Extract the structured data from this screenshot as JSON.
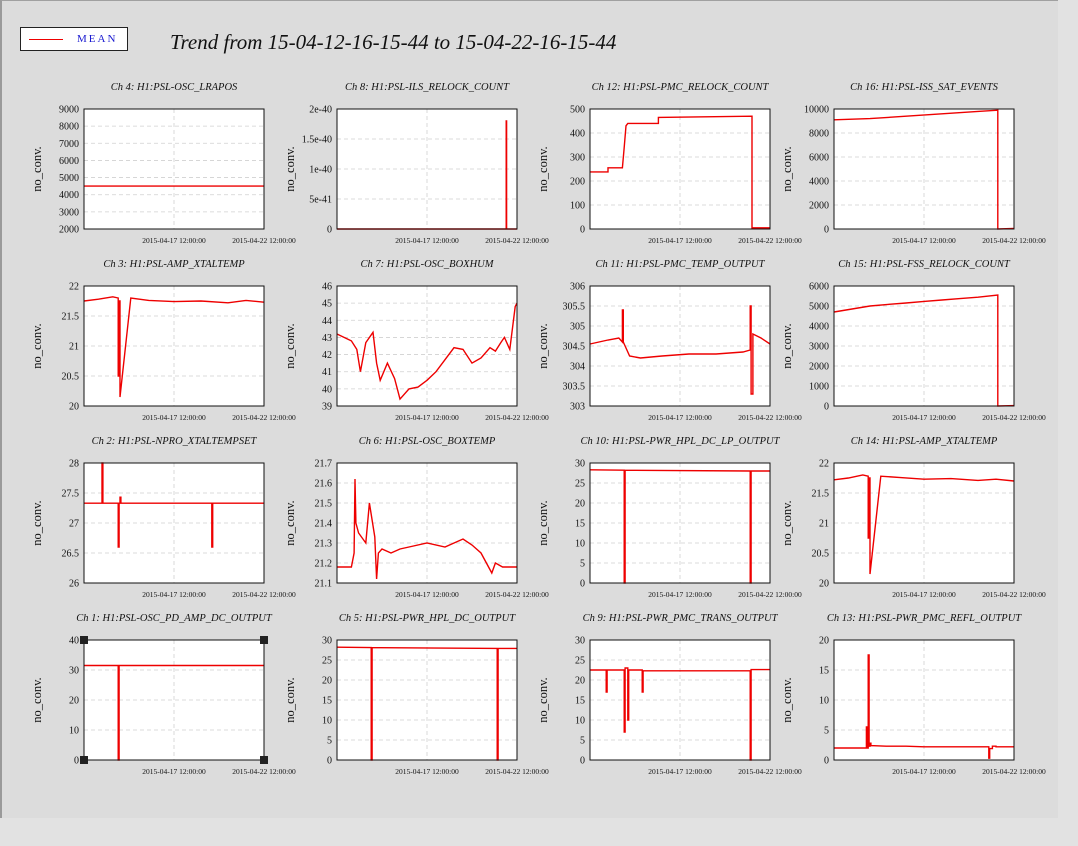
{
  "title": "Trend from 15-04-12-16-15-44 to 15-04-22-16-15-44",
  "legend": {
    "label": "MEAN",
    "color": "#ee0000"
  },
  "x_tick_labels": [
    "2015-04-17 12:00:00",
    "2015-04-22 12:00:00"
  ],
  "chart_data": [
    {
      "type": "line",
      "title": "Ch 4: H1:PSL-OSC_LRAPOS",
      "ylabel": "no_conv.",
      "ylim": [
        2000,
        9000
      ],
      "yticks": [
        2000,
        3000,
        4000,
        5000,
        6000,
        7000,
        8000,
        9000
      ],
      "ytick_labels": [
        "2000",
        "3000",
        "4000",
        "5000",
        "6000",
        "7000",
        "8000",
        "9000"
      ],
      "xlim": [
        0,
        10
      ],
      "xticks": [
        5,
        10
      ],
      "series": [
        {
          "x": [
            0,
            10
          ],
          "y": [
            4500,
            4500
          ]
        }
      ]
    },
    {
      "type": "line",
      "title": "Ch 8: H1:PSL-ILS_RELOCK_COUNT",
      "ylabel": "no_conv.",
      "ylim": [
        0,
        2e-40
      ],
      "yticks": [
        0,
        5e-41,
        1e-40,
        1.5e-40,
        2e-40
      ],
      "ytick_labels": [
        "0",
        "5e-41",
        "1e-40",
        "1.5e-40",
        "2e-40"
      ],
      "xlim": [
        0,
        10
      ],
      "xticks": [
        5,
        10
      ],
      "series": [
        {
          "x": [
            0,
            9.4,
            9.4,
            9.42,
            9.42,
            10
          ],
          "y": [
            0,
            0,
            1.8e-40,
            1.8e-40,
            0,
            0
          ]
        }
      ]
    },
    {
      "type": "line",
      "title": "Ch 12: H1:PSL-PMC_RELOCK_COUNT",
      "ylabel": "no_conv.",
      "ylim": [
        0,
        500
      ],
      "yticks": [
        0,
        100,
        200,
        300,
        400,
        500
      ],
      "ytick_labels": [
        "0",
        "100",
        "200",
        "300",
        "400",
        "500"
      ],
      "xlim": [
        0,
        10
      ],
      "xticks": [
        5,
        10
      ],
      "series": [
        {
          "x": [
            0,
            1,
            1,
            1.8,
            1.9,
            2,
            2.1,
            3.8,
            3.8,
            9.0,
            9.0,
            10
          ],
          "y": [
            238,
            238,
            255,
            255,
            340,
            430,
            440,
            440,
            465,
            470,
            5,
            5
          ]
        }
      ]
    },
    {
      "type": "line",
      "title": "Ch 16: H1:PSL-ISS_SAT_EVENTS",
      "ylabel": "no_conv.",
      "ylim": [
        0,
        10000
      ],
      "yticks": [
        0,
        2000,
        4000,
        6000,
        8000,
        10000
      ],
      "ytick_labels": [
        "0",
        "2000",
        "4000",
        "6000",
        "8000",
        "10000"
      ],
      "xlim": [
        0,
        10
      ],
      "xticks": [
        5,
        10
      ],
      "series": [
        {
          "x": [
            0,
            2,
            4,
            6,
            8,
            9.1,
            9.1,
            10
          ],
          "y": [
            9100,
            9200,
            9400,
            9600,
            9800,
            9900,
            0,
            50
          ]
        }
      ]
    },
    {
      "type": "line",
      "title": "Ch 3: H1:PSL-AMP_XTALTEMP",
      "ylabel": "no_conv.",
      "ylim": [
        20,
        22
      ],
      "yticks": [
        20,
        20.5,
        21,
        21.5,
        22
      ],
      "ytick_labels": [
        "20",
        "20.5",
        "21",
        "21.5",
        "22"
      ],
      "xlim": [
        0,
        10
      ],
      "xticks": [
        5,
        10
      ],
      "series": [
        {
          "x": [
            0,
            0.8,
            1.6,
            1.9,
            1.9,
            1.95,
            1.95,
            2.0,
            2.0,
            2.6,
            3.6,
            5,
            6.5,
            8,
            9,
            10
          ],
          "y": [
            21.75,
            21.78,
            21.82,
            21.8,
            20.5,
            20.5,
            21.75,
            21.75,
            20.15,
            21.8,
            21.76,
            21.74,
            21.75,
            21.72,
            21.76,
            21.73
          ]
        }
      ]
    },
    {
      "type": "line",
      "title": "Ch 7: H1:PSL-OSC_BOXHUM",
      "ylabel": "no_conv.",
      "ylim": [
        39,
        46
      ],
      "yticks": [
        39,
        40,
        41,
        42,
        43,
        44,
        45,
        46
      ],
      "ytick_labels": [
        "39",
        "40",
        "41",
        "42",
        "43",
        "44",
        "45",
        "46"
      ],
      "xlim": [
        0,
        10
      ],
      "xticks": [
        5,
        10
      ],
      "series": [
        {
          "x": [
            0,
            0.8,
            1.1,
            1.3,
            1.6,
            2.0,
            2.2,
            2.4,
            2.8,
            3.2,
            3.5,
            4,
            4.5,
            5,
            5.5,
            6,
            6.5,
            7,
            7.5,
            8,
            8.5,
            8.8,
            9.1,
            9.3,
            9.6,
            9.9,
            10
          ],
          "y": [
            43.2,
            42.8,
            42.3,
            41,
            42.7,
            43.3,
            41.5,
            40.5,
            41.5,
            40.6,
            39.4,
            40,
            40.1,
            40.5,
            41,
            41.7,
            42.4,
            42.3,
            41.5,
            41.8,
            42.4,
            42.2,
            42.7,
            43,
            42.3,
            44.8,
            45
          ]
        }
      ]
    },
    {
      "type": "line",
      "title": "Ch 11: H1:PSL-PMC_TEMP_OUTPUT",
      "ylabel": "no_conv.",
      "ylim": [
        303,
        306
      ],
      "yticks": [
        303,
        303.5,
        304,
        304.5,
        305,
        305.5,
        306
      ],
      "ytick_labels": [
        "303",
        "303.5",
        "304",
        "304.5",
        "305",
        "305.5",
        "306"
      ],
      "xlim": [
        0,
        10
      ],
      "xticks": [
        5,
        10
      ],
      "series": [
        {
          "x": [
            0,
            1,
            1.6,
            1.8,
            1.8,
            1.85,
            1.85,
            2.2,
            2.8,
            4,
            5.5,
            7,
            8.5,
            8.9,
            8.9,
            8.95,
            8.95,
            9.05,
            9.05,
            9.5,
            10
          ],
          "y": [
            304.55,
            304.65,
            304.7,
            304.6,
            305.4,
            305.4,
            304.6,
            304.25,
            304.2,
            304.25,
            304.3,
            304.3,
            304.35,
            304.4,
            305.5,
            305.5,
            303.3,
            303.3,
            304.8,
            304.7,
            304.55
          ]
        }
      ]
    },
    {
      "type": "line",
      "title": "Ch 15: H1:PSL-FSS_RELOCK_COUNT",
      "ylabel": "no_conv.",
      "ylim": [
        0,
        6000
      ],
      "yticks": [
        0,
        1000,
        2000,
        3000,
        4000,
        5000,
        6000
      ],
      "ytick_labels": [
        "0",
        "1000",
        "2000",
        "3000",
        "4000",
        "5000",
        "6000"
      ],
      "xlim": [
        0,
        10
      ],
      "xticks": [
        5,
        10
      ],
      "series": [
        {
          "x": [
            0,
            1,
            2,
            3,
            4,
            5,
            6,
            7,
            8,
            9.1,
            9.1,
            10
          ],
          "y": [
            4700,
            4850,
            5000,
            5080,
            5150,
            5230,
            5300,
            5370,
            5440,
            5550,
            0,
            20
          ]
        }
      ]
    },
    {
      "type": "line",
      "title": "Ch 2: H1:PSL-NPRO_XTALTEMPSET",
      "ylabel": "no_conv.",
      "ylim": [
        26,
        28
      ],
      "yticks": [
        26,
        26.5,
        27,
        27.5,
        28
      ],
      "ytick_labels": [
        "26",
        "26.5",
        "27",
        "27.5",
        "28"
      ],
      "xlim": [
        0,
        10
      ],
      "xticks": [
        5,
        10
      ],
      "series": [
        {
          "x": [
            0,
            1,
            1,
            1.05,
            1.05,
            1.9,
            1.9,
            1.95,
            1.95,
            2.0,
            2.0,
            2.05,
            2.05,
            7.1,
            7.1,
            7.15,
            7.15,
            10
          ],
          "y": [
            27.33,
            27.33,
            28,
            28,
            27.33,
            27.33,
            26.6,
            26.6,
            27.33,
            27.33,
            27.43,
            27.43,
            27.33,
            27.33,
            26.6,
            26.6,
            27.33,
            27.33
          ]
        }
      ]
    },
    {
      "type": "line",
      "title": "Ch 6: H1:PSL-OSC_BOXTEMP",
      "ylabel": "no_conv.",
      "ylim": [
        21.1,
        21.7
      ],
      "yticks": [
        21.1,
        21.2,
        21.3,
        21.4,
        21.5,
        21.6,
        21.7
      ],
      "ytick_labels": [
        "21.1",
        "21.2",
        "21.3",
        "21.4",
        "21.5",
        "21.6",
        "21.7"
      ],
      "xlim": [
        0,
        10
      ],
      "xticks": [
        5,
        10
      ],
      "series": [
        {
          "x": [
            0,
            0.8,
            0.95,
            1.0,
            1.05,
            1.2,
            1.6,
            1.8,
            2.1,
            2.2,
            2.3,
            2.5,
            3,
            3.5,
            4,
            5,
            6,
            7,
            7.5,
            8,
            8.3,
            8.6,
            8.8,
            9.2,
            10
          ],
          "y": [
            21.18,
            21.18,
            21.25,
            21.62,
            21.4,
            21.35,
            21.3,
            21.5,
            21.33,
            21.12,
            21.25,
            21.27,
            21.25,
            21.27,
            21.28,
            21.3,
            21.28,
            21.32,
            21.29,
            21.25,
            21.2,
            21.15,
            21.2,
            21.18,
            21.18
          ]
        }
      ]
    },
    {
      "type": "line",
      "title": "Ch 10: H1:PSL-PWR_HPL_DC_LP_OUTPUT",
      "ylabel": "no_conv.",
      "ylim": [
        0,
        30
      ],
      "yticks": [
        0,
        5,
        10,
        15,
        20,
        25,
        30
      ],
      "ytick_labels": [
        "0",
        "5",
        "10",
        "15",
        "20",
        "25",
        "30"
      ],
      "xlim": [
        0,
        10
      ],
      "xticks": [
        5,
        10
      ],
      "series": [
        {
          "x": [
            0,
            1.9,
            1.9,
            1.95,
            1.95,
            8.9,
            8.9,
            8.95,
            8.95,
            10
          ],
          "y": [
            28.3,
            28.2,
            0,
            0,
            28.2,
            28,
            0,
            0,
            28,
            28
          ]
        }
      ]
    },
    {
      "type": "line",
      "title": "Ch 14: H1:PSL-AMP_XTALTEMP",
      "ylabel": "no_conv.",
      "ylim": [
        20,
        22
      ],
      "yticks": [
        20,
        20.5,
        21,
        21.5,
        22
      ],
      "ytick_labels": [
        "20",
        "20.5",
        "21",
        "21.5",
        "22"
      ],
      "xlim": [
        0,
        10
      ],
      "xticks": [
        5,
        10
      ],
      "series": [
        {
          "x": [
            0,
            0.8,
            1.6,
            1.9,
            1.9,
            1.95,
            1.95,
            2.0,
            2.0,
            2.6,
            3.6,
            5,
            6.5,
            8,
            9,
            10
          ],
          "y": [
            21.72,
            21.75,
            21.8,
            21.78,
            20.75,
            20.75,
            21.75,
            21.75,
            20.15,
            21.78,
            21.76,
            21.73,
            21.74,
            21.71,
            21.73,
            21.7
          ]
        }
      ]
    },
    {
      "type": "line",
      "title": "Ch 1: H1:PSL-OSC_PD_AMP_DC_OUTPUT",
      "ylabel": "no_conv.",
      "ylim": [
        0,
        40
      ],
      "yticks": [
        0,
        10,
        20,
        30,
        40
      ],
      "ytick_labels": [
        "0",
        "10",
        "20",
        "30",
        "40"
      ],
      "xlim": [
        0,
        10
      ],
      "xticks": [
        5,
        10
      ],
      "series": [
        {
          "x": [
            0,
            1.9,
            1.9,
            1.95,
            1.95,
            10
          ],
          "y": [
            31.5,
            31.5,
            0,
            0,
            31.5,
            31.5
          ]
        }
      ]
    },
    {
      "type": "line",
      "title": "Ch 5: H1:PSL-PWR_HPL_DC_OUTPUT",
      "ylabel": "no_conv.",
      "ylim": [
        0,
        30
      ],
      "yticks": [
        0,
        5,
        10,
        15,
        20,
        25,
        30
      ],
      "ytick_labels": [
        "0",
        "5",
        "10",
        "15",
        "20",
        "25",
        "30"
      ],
      "xlim": [
        0,
        10
      ],
      "xticks": [
        5,
        10
      ],
      "series": [
        {
          "x": [
            0,
            1.9,
            1.9,
            1.95,
            1.95,
            8.9,
            8.9,
            8.95,
            8.95,
            10
          ],
          "y": [
            28.2,
            28.1,
            0,
            0,
            28.1,
            27.9,
            0,
            0,
            27.9,
            27.9
          ]
        }
      ]
    },
    {
      "type": "line",
      "title": "Ch 9: H1:PSL-PWR_PMC_TRANS_OUTPUT",
      "ylabel": "no_conv.",
      "ylim": [
        0,
        30
      ],
      "yticks": [
        0,
        5,
        10,
        15,
        20,
        25,
        30
      ],
      "ytick_labels": [
        "0",
        "5",
        "10",
        "15",
        "20",
        "25",
        "30"
      ],
      "xlim": [
        0,
        10
      ],
      "xticks": [
        5,
        10
      ],
      "series": [
        {
          "x": [
            0,
            0.9,
            0.9,
            0.95,
            0.95,
            1.9,
            1.9,
            1.95,
            1.95,
            2.1,
            2.1,
            2.15,
            2.15,
            2.9,
            2.9,
            2.95,
            2.95,
            8.9,
            8.9,
            8.95,
            8.95,
            10
          ],
          "y": [
            22.5,
            22.5,
            17,
            17,
            22.5,
            22.5,
            7,
            7,
            23,
            23,
            10,
            10,
            22.5,
            22.5,
            17,
            17,
            22.3,
            22.3,
            0,
            0,
            22.6,
            22.6
          ]
        }
      ]
    },
    {
      "type": "line",
      "title": "Ch 13: H1:PSL-PWR_PMC_REFL_OUTPUT",
      "ylabel": "no_conv.",
      "ylim": [
        0,
        20
      ],
      "yticks": [
        0,
        5,
        10,
        15,
        20
      ],
      "ytick_labels": [
        "0",
        "5",
        "10",
        "15",
        "20"
      ],
      "xlim": [
        0,
        10
      ],
      "xticks": [
        5,
        10
      ],
      "series": [
        {
          "x": [
            0,
            1.8,
            1.8,
            1.85,
            1.85,
            1.9,
            1.9,
            1.95,
            1.95,
            2.0,
            2.0,
            2.05,
            2.05,
            2.9,
            4,
            5,
            6,
            7,
            8,
            8.6,
            8.6,
            8.65,
            8.65,
            8.8,
            8.8,
            9.0,
            9.0,
            10
          ],
          "y": [
            2.0,
            2.0,
            5.5,
            5.5,
            2.0,
            2.0,
            17.5,
            17.5,
            2.3,
            2.3,
            2.8,
            2.8,
            2.4,
            2.3,
            2.3,
            2.2,
            2.2,
            2.2,
            2.2,
            2.2,
            0.3,
            0.3,
            1.9,
            1.9,
            2.3,
            2.3,
            2.2,
            2.2
          ]
        }
      ]
    }
  ]
}
